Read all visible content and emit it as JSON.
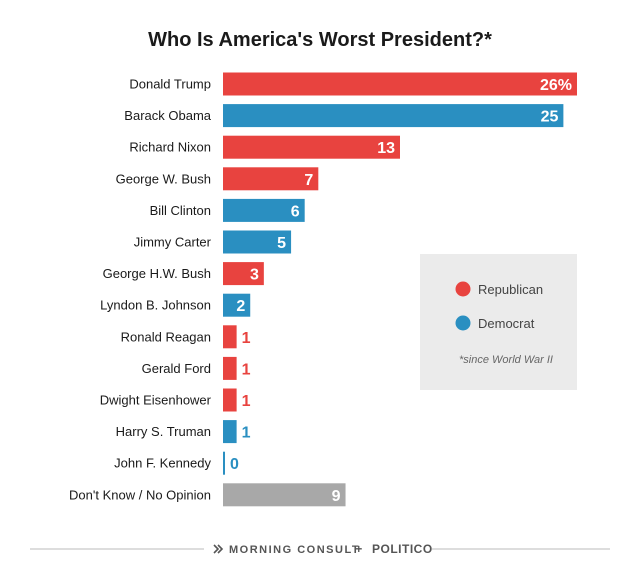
{
  "chart_data": {
    "type": "bar",
    "orientation": "horizontal",
    "title": "Who Is America's Worst President?*",
    "categories": [
      "Donald Trump",
      "Barack Obama",
      "Richard Nixon",
      "George W. Bush",
      "Bill Clinton",
      "Jimmy Carter",
      "George H.W. Bush",
      "Lyndon B. Johnson",
      "Ronald Reagan",
      "Gerald Ford",
      "Dwight Eisenhower",
      "Harry S. Truman",
      "John F. Kennedy",
      "Don't Know / No Opinion"
    ],
    "values": [
      26,
      25,
      13,
      7,
      6,
      5,
      3,
      2,
      1,
      1,
      1,
      1,
      0,
      9
    ],
    "value_labels": [
      "26%",
      "25",
      "13",
      "7",
      "6",
      "5",
      "3",
      "2",
      "1",
      "1",
      "1",
      "1",
      "0",
      "9"
    ],
    "party": [
      "Republican",
      "Democrat",
      "Republican",
      "Republican",
      "Democrat",
      "Democrat",
      "Republican",
      "Democrat",
      "Republican",
      "Republican",
      "Republican",
      "Democrat",
      "Democrat",
      "None"
    ],
    "xlim": [
      0,
      26
    ],
    "legend": {
      "placement": "right",
      "items": [
        {
          "label": "Republican",
          "color": "#e8433f"
        },
        {
          "label": "Democrat",
          "color": "#2a8fc1"
        }
      ],
      "note": "*since World War II"
    },
    "colors": {
      "Republican": "#e8433f",
      "Democrat": "#2a8fc1",
      "None": "#a8a8a8"
    }
  },
  "footer": {
    "source_left": "MORNING CONSULT",
    "separator": "+",
    "source_right": "POLITICO"
  }
}
